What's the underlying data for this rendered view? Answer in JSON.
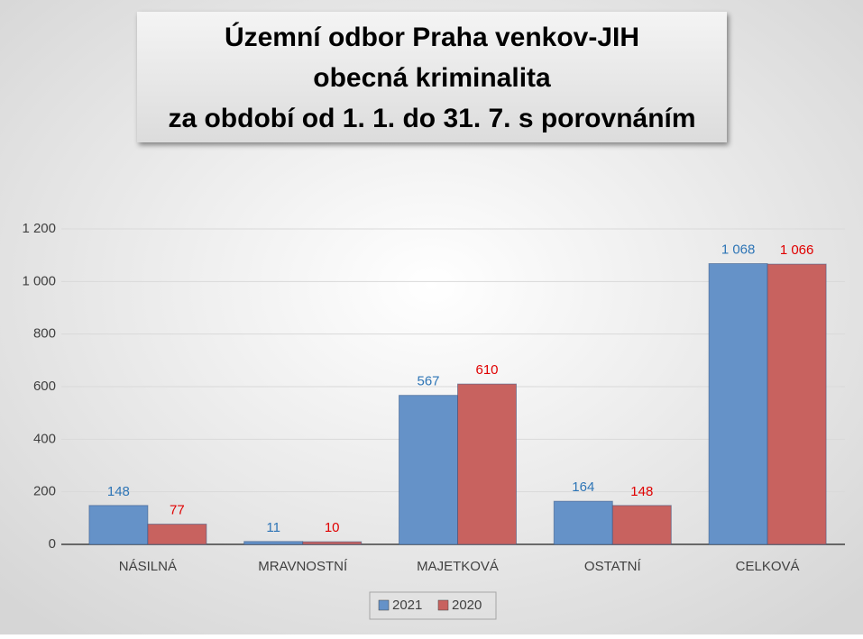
{
  "chart_data": {
    "type": "bar",
    "title": [
      "Územní odbor Praha venkov-JIH",
      "obecná kriminalita",
      "za období od 1. 1. do 31. 7. s porovnáním"
    ],
    "categories": [
      "NÁSILNÁ",
      "MRAVNOSTNÍ",
      "MAJETKOVÁ",
      "OSTATNÍ",
      "CELKOVÁ"
    ],
    "series": [
      {
        "name": "2021",
        "color": "#6592c8",
        "label_color": "#2e75b6",
        "values": [
          148,
          11,
          567,
          164,
          1068
        ],
        "value_labels": [
          "148",
          "11",
          "567",
          "164",
          "1 068"
        ]
      },
      {
        "name": "2020",
        "color": "#c8625f",
        "label_color": "#e00000",
        "values": [
          77,
          10,
          610,
          148,
          1066
        ],
        "value_labels": [
          "77",
          "10",
          "610",
          "148",
          "1 066"
        ]
      }
    ],
    "ylim": [
      0,
      1200
    ],
    "yticks": [
      0,
      200,
      400,
      600,
      800,
      {
        "value": 1000,
        "label": "1 000"
      },
      {
        "value": 1200,
        "label": "1 200"
      }
    ],
    "grid": true,
    "legend": "bottom"
  }
}
